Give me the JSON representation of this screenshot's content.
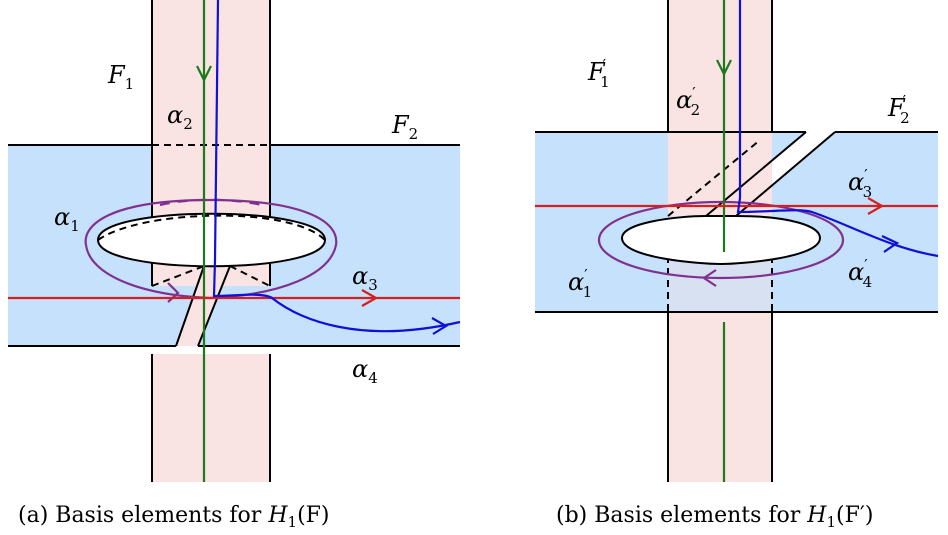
{
  "colors": {
    "surface_blue": "#c5e1fb",
    "band_pink": "#f9e3e3",
    "alpha1_purple": "#80308f",
    "alpha2_green": "#1c7a1c",
    "alpha3_red": "#d42020",
    "alpha4_blue": "#1010d8"
  },
  "panel_a": {
    "surface_label_1": {
      "base": "F",
      "sub": "1"
    },
    "surface_label_2": {
      "base": "F",
      "sub": "2"
    },
    "curves": [
      {
        "name": "α",
        "sub": "1"
      },
      {
        "name": "α",
        "sub": "2"
      },
      {
        "name": "α",
        "sub": "3"
      },
      {
        "name": "α",
        "sub": "4"
      }
    ],
    "caption": {
      "prefix": "(a) Basis elements for ",
      "math": "H",
      "sub": "1",
      "arg": "(F)"
    }
  },
  "panel_b": {
    "surface_label_1": {
      "base": "F",
      "sub": "1",
      "prime": "′"
    },
    "surface_label_2": {
      "base": "F",
      "sub": "2",
      "prime": "′"
    },
    "curves": [
      {
        "name": "α",
        "sub": "1",
        "prime": "′"
      },
      {
        "name": "α",
        "sub": "2",
        "prime": "′"
      },
      {
        "name": "α",
        "sub": "3",
        "prime": "′"
      },
      {
        "name": "α",
        "sub": "4",
        "prime": "′"
      }
    ],
    "caption": {
      "prefix": "(b) Basis elements for ",
      "math": "H",
      "sub": "1",
      "arg": "(F′)"
    }
  }
}
